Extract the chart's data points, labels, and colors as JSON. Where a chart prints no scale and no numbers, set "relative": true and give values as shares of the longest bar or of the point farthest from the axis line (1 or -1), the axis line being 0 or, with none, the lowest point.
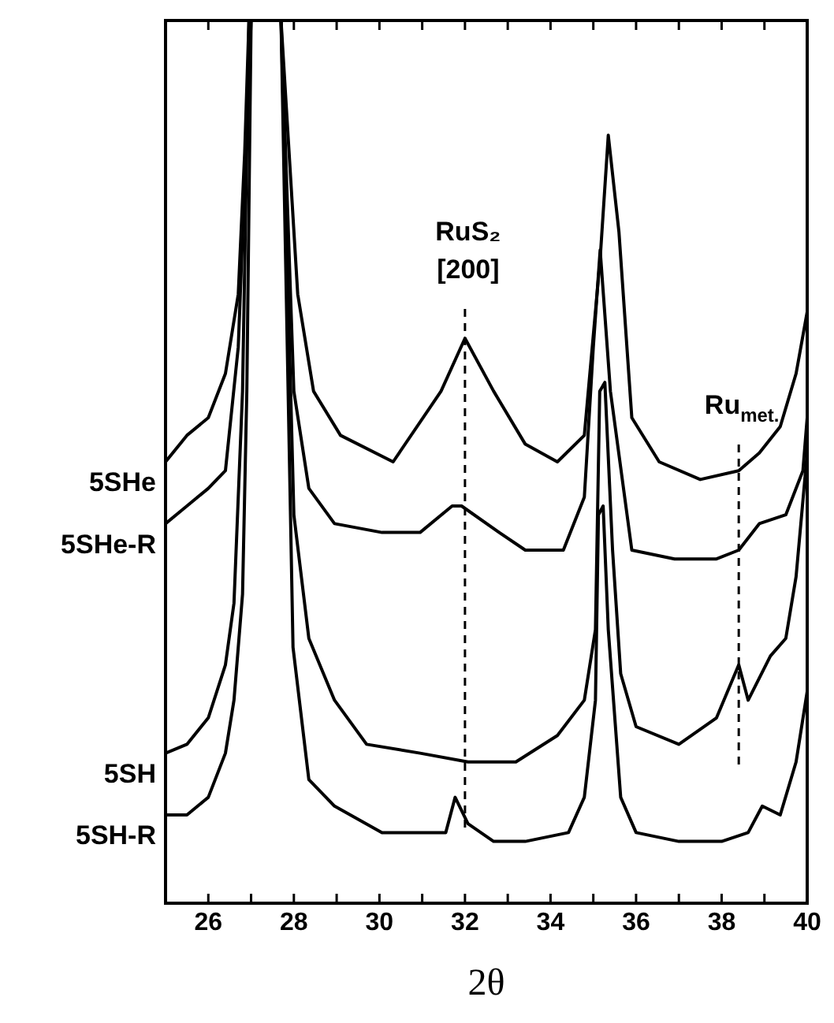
{
  "chart_data": {
    "type": "line",
    "relative": true,
    "xlabel": "2θ",
    "xlim": [
      25,
      40
    ],
    "xticks": [
      {
        "value": 25,
        "label": null
      },
      26,
      {
        "value": 27,
        "label": null
      },
      28,
      {
        "value": 29,
        "label": null
      },
      30,
      {
        "value": 31,
        "label": null
      },
      32,
      {
        "value": 33,
        "label": null
      },
      34,
      {
        "value": 35,
        "label": null
      },
      36,
      {
        "value": 37,
        "label": null
      },
      38,
      {
        "value": 39,
        "label": null
      },
      40
    ],
    "line_style": "solid",
    "marker": "none",
    "series": [
      {
        "name": "5SHe",
        "color": "#000000",
        "x": [
          25,
          25.5,
          26,
          26.4,
          26.7,
          26.85,
          26.95,
          27.3,
          27.7,
          28.09,
          28.46,
          29.09,
          30.32,
          31.44,
          32.0,
          32.67,
          33.41,
          34.16,
          34.79,
          35.16,
          35.35,
          35.6,
          35.9,
          36.54,
          37.5,
          38.4,
          38.88,
          39.37,
          39.74,
          40
        ],
        "values": [
          0.5,
          0.53,
          0.55,
          0.6,
          0.69,
          0.85,
          1,
          null,
          1,
          0.69,
          0.58,
          0.53,
          0.5,
          0.58,
          0.64,
          0.58,
          0.52,
          0.5,
          0.53,
          0.73,
          0.87,
          0.76,
          0.55,
          0.5,
          0.48,
          0.49,
          0.51,
          0.54,
          0.6,
          0.67
        ]
      },
      {
        "name": "5SHe-R",
        "color": "#000000",
        "x": [
          25,
          25.5,
          26,
          26.4,
          26.7,
          26.9,
          27.0,
          27.3,
          27.7,
          28.0,
          28.35,
          28.95,
          30.06,
          30.95,
          31.7,
          31.92,
          32.8,
          33.41,
          34.3,
          34.79,
          35.0,
          35.16,
          35.4,
          35.9,
          36.9,
          37.88,
          38.4,
          38.88,
          39.5,
          39.9,
          40
        ],
        "values": [
          0.43,
          0.45,
          0.47,
          0.49,
          0.63,
          0.88,
          1,
          null,
          1,
          0.58,
          0.47,
          0.43,
          0.42,
          0.42,
          0.45,
          0.45,
          0.42,
          0.4,
          0.4,
          0.46,
          0.63,
          0.74,
          0.58,
          0.4,
          0.39,
          0.39,
          0.4,
          0.43,
          0.44,
          0.49,
          0.55
        ]
      },
      {
        "name": "5SH",
        "color": "#000000",
        "x": [
          25,
          25.5,
          26,
          26.4,
          26.6,
          26.8,
          26.95,
          27.3,
          27.7,
          28.0,
          28.35,
          28.95,
          29.7,
          30.95,
          32.07,
          33.19,
          34.16,
          34.79,
          35.05,
          35.15,
          35.27,
          35.45,
          35.64,
          36.0,
          37.0,
          37.88,
          38.4,
          38.62,
          39.14,
          39.5,
          39.74,
          40
        ],
        "values": [
          0.17,
          0.18,
          0.21,
          0.27,
          0.34,
          0.58,
          1,
          null,
          1,
          0.44,
          0.3,
          0.23,
          0.18,
          0.17,
          0.16,
          0.16,
          0.19,
          0.23,
          0.31,
          0.58,
          0.59,
          0.4,
          0.26,
          0.2,
          0.18,
          0.21,
          0.27,
          0.23,
          0.28,
          0.3,
          0.37,
          0.51
        ]
      },
      {
        "name": "5SH-R",
        "color": "#000000",
        "x": [
          25,
          25.5,
          26,
          26.4,
          26.6,
          26.8,
          26.9,
          27.0,
          27.3,
          27.7,
          27.98,
          28.35,
          28.95,
          30.06,
          30.95,
          31.55,
          31.77,
          32.07,
          32.67,
          33.41,
          34.42,
          34.79,
          35.05,
          35.12,
          35.23,
          35.35,
          35.64,
          36.0,
          37.0,
          38.0,
          38.62,
          38.95,
          39.37,
          39.74,
          40
        ],
        "values": [
          0.1,
          0.1,
          0.12,
          0.17,
          0.23,
          0.35,
          0.58,
          1,
          null,
          1,
          0.29,
          0.14,
          0.11,
          0.08,
          0.08,
          0.08,
          0.12,
          0.09,
          0.07,
          0.07,
          0.08,
          0.12,
          0.23,
          0.44,
          0.45,
          0.31,
          0.12,
          0.08,
          0.07,
          0.07,
          0.08,
          0.11,
          0.1,
          0.16,
          0.24
        ]
      }
    ],
    "ref_lines": [
      {
        "axis": "x",
        "value": 32,
        "label": "RuS₂ [200]",
        "line_style": "dashed"
      },
      {
        "axis": "x",
        "value": 38.4,
        "label": "Ru$_{met.}$",
        "line_style": "dashed"
      }
    ]
  }
}
